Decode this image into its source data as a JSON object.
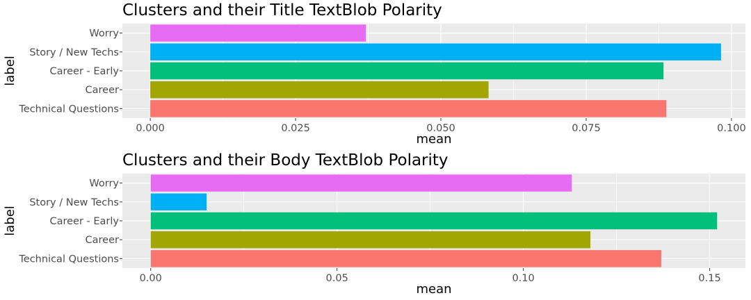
{
  "chart_data": [
    {
      "type": "bar",
      "orientation": "horizontal",
      "title": "Clusters and their Title TextBlob Polarity",
      "xlabel": "mean",
      "ylabel": "label",
      "categories": [
        "Technical Questions",
        "Career",
        "Career - Early",
        "Story / New Techs",
        "Worry"
      ],
      "values": [
        0.0888,
        0.0582,
        0.0883,
        0.0982,
        0.0371
      ],
      "colors": [
        "#F8766D",
        "#A3A500",
        "#00BF7D",
        "#00B0F6",
        "#E76BF3"
      ],
      "xlim": [
        -0.0048,
        0.1024
      ],
      "xticks": [
        0,
        0.025,
        0.05,
        0.075,
        0.1
      ],
      "xtick_labels": [
        "0.000",
        "0.025",
        "0.050",
        "0.075",
        "0.100"
      ],
      "grid": true
    },
    {
      "type": "bar",
      "orientation": "horizontal",
      "title": "Clusters and their Body TextBlob Polarity",
      "xlabel": "mean",
      "ylabel": "label",
      "categories": [
        "Technical Questions",
        "Career",
        "Career - Early",
        "Story / New Techs",
        "Worry"
      ],
      "values": [
        0.137,
        0.118,
        0.152,
        0.015,
        0.113
      ],
      "colors": [
        "#F8766D",
        "#A3A500",
        "#00BF7D",
        "#00B0F6",
        "#E76BF3"
      ],
      "xlim": [
        -0.0076,
        0.1596
      ],
      "xticks": [
        0,
        0.05,
        0.1,
        0.15
      ],
      "xtick_labels": [
        "0.00",
        "0.05",
        "0.10",
        "0.15"
      ],
      "grid": true
    }
  ]
}
